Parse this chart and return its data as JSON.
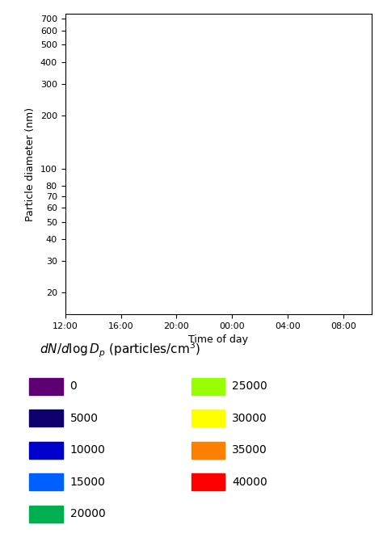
{
  "xlabel": "Time of day",
  "ylabel": "Particle diameter (nm)",
  "x_ticks_labels": [
    "12:00",
    "16:00",
    "20:00",
    "00:00",
    "04:00",
    "08:00"
  ],
  "x_tick_positions": [
    0,
    4,
    8,
    12,
    16,
    20
  ],
  "x_lim": [
    0,
    22
  ],
  "y_ticks": [
    20,
    30,
    40,
    50,
    60,
    70,
    80,
    100,
    200,
    300,
    400,
    500,
    600,
    700
  ],
  "y_lim": [
    15,
    750
  ],
  "colormap_colors": [
    "#5e0073",
    "#0d006e",
    "#0000cc",
    "#0060ff",
    "#00b050",
    "#99ff00",
    "#ffff00",
    "#ff8000",
    "#ff0000"
  ],
  "colormap_values": [
    0,
    5000,
    10000,
    15000,
    20000,
    25000,
    30000,
    35000,
    40000
  ],
  "vmin": 0,
  "vmax": 40000,
  "legend_items_left": [
    [
      "0",
      "#5e0073"
    ],
    [
      "5000",
      "#0d006e"
    ],
    [
      "10000",
      "#0000cc"
    ],
    [
      "15000",
      "#0060ff"
    ],
    [
      "20000",
      "#00b050"
    ]
  ],
  "legend_items_right": [
    [
      "25000",
      "#99ff00"
    ],
    [
      "30000",
      "#ffff00"
    ],
    [
      "35000",
      "#ff8000"
    ],
    [
      "40000",
      "#ff0000"
    ]
  ],
  "figsize": [
    4.74,
    6.71
  ],
  "dpi": 100,
  "bg_color": "#ffffff"
}
